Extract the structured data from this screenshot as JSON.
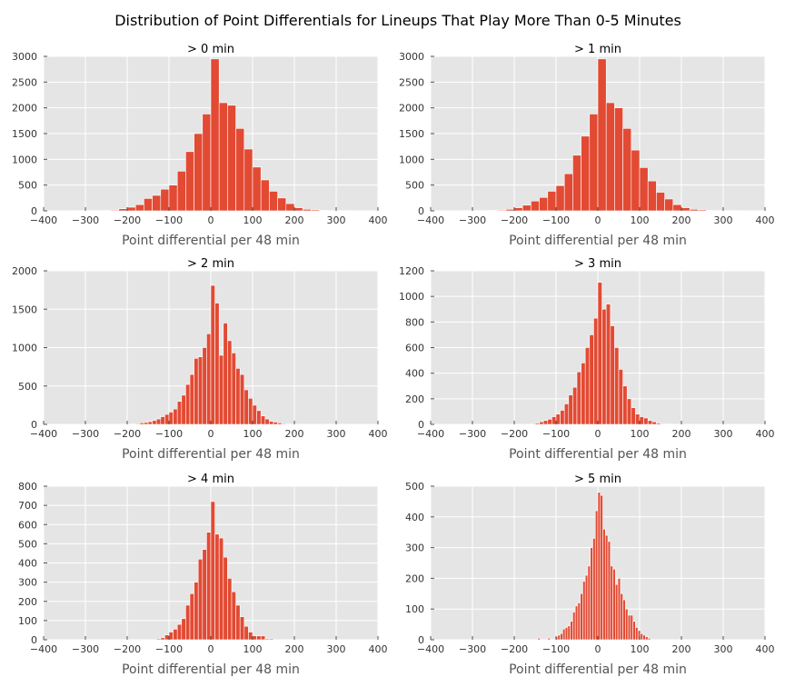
{
  "figure": {
    "title": "Distribution of Point Differentials for Lineups That Play More Than 0-5 Minutes"
  },
  "chart_data": [
    {
      "type": "bar",
      "title": "> 0 min",
      "xlabel": "Point differential per 48 min",
      "ylabel": "",
      "xlim": [
        -400,
        400
      ],
      "ylim": [
        0,
        3000
      ],
      "xticks": [
        -400,
        -300,
        -200,
        -100,
        0,
        100,
        200,
        300,
        400
      ],
      "yticks": [
        0,
        500,
        1000,
        1500,
        2000,
        2500,
        3000
      ],
      "bin_width": 20,
      "bin_starts": [
        -320,
        -300,
        -280,
        -260,
        -240,
        -220,
        -200,
        -180,
        -160,
        -140,
        -120,
        -100,
        -80,
        -60,
        -40,
        -20,
        0,
        20,
        40,
        60,
        80,
        100,
        120,
        140,
        160,
        180,
        200,
        220,
        240,
        260,
        280,
        300,
        320,
        340,
        360
      ],
      "values": [
        5,
        5,
        5,
        10,
        15,
        40,
        70,
        120,
        240,
        300,
        420,
        500,
        770,
        1150,
        1500,
        1880,
        2950,
        2100,
        2050,
        1600,
        1200,
        850,
        600,
        380,
        250,
        140,
        60,
        30,
        20,
        10,
        5,
        5,
        5,
        3,
        3
      ],
      "grid": true
    },
    {
      "type": "bar",
      "title": "> 1 min",
      "xlabel": "Point differential per 48 min",
      "ylabel": "",
      "xlim": [
        -400,
        400
      ],
      "ylim": [
        0,
        3000
      ],
      "xticks": [
        -400,
        -300,
        -200,
        -100,
        0,
        100,
        200,
        300,
        400
      ],
      "yticks": [
        0,
        500,
        1000,
        1500,
        2000,
        2500,
        3000
      ],
      "bin_width": 20,
      "bin_starts": [
        -320,
        -300,
        -280,
        -260,
        -240,
        -220,
        -200,
        -180,
        -160,
        -140,
        -120,
        -100,
        -80,
        -60,
        -40,
        -20,
        0,
        20,
        40,
        60,
        80,
        100,
        120,
        140,
        160,
        180,
        200,
        220,
        240,
        260,
        280,
        300,
        320,
        340,
        360
      ],
      "values": [
        5,
        5,
        5,
        10,
        15,
        30,
        60,
        110,
        190,
        260,
        380,
        490,
        720,
        1080,
        1450,
        1880,
        2950,
        2100,
        2000,
        1600,
        1180,
        840,
        580,
        360,
        230,
        120,
        60,
        30,
        20,
        10,
        5,
        5,
        5,
        3,
        3
      ],
      "grid": true
    },
    {
      "type": "bar",
      "title": "> 2 min",
      "xlabel": "Point differential per 48 min",
      "ylabel": "",
      "xlim": [
        -400,
        400
      ],
      "ylim": [
        0,
        2000
      ],
      "xticks": [
        -400,
        -300,
        -200,
        -100,
        0,
        100,
        200,
        300,
        400
      ],
      "yticks": [
        0,
        500,
        1000,
        1500,
        2000
      ],
      "bin_width": 10,
      "bin_starts": [
        -190,
        -180,
        -170,
        -160,
        -150,
        -140,
        -130,
        -120,
        -110,
        -100,
        -90,
        -80,
        -70,
        -60,
        -50,
        -40,
        -30,
        -20,
        -10,
        0,
        10,
        20,
        30,
        40,
        50,
        60,
        70,
        80,
        90,
        100,
        110,
        120,
        130,
        140,
        150,
        160,
        170,
        180
      ],
      "values": [
        5,
        10,
        20,
        25,
        35,
        50,
        70,
        100,
        130,
        160,
        200,
        300,
        380,
        520,
        650,
        860,
        880,
        1000,
        1180,
        1810,
        1580,
        900,
        1320,
        1090,
        930,
        730,
        650,
        450,
        340,
        250,
        180,
        110,
        70,
        40,
        30,
        20,
        10,
        5
      ],
      "grid": true
    },
    {
      "type": "bar",
      "title": "> 3 min",
      "xlabel": "Point differential per 48 min",
      "ylabel": "",
      "xlim": [
        -400,
        400
      ],
      "ylim": [
        0,
        1200
      ],
      "xticks": [
        -400,
        -300,
        -200,
        -100,
        0,
        100,
        200,
        300,
        400
      ],
      "yticks": [
        0,
        200,
        400,
        600,
        800,
        1000,
        1200
      ],
      "bin_width": 10,
      "bin_starts": [
        -160,
        -150,
        -140,
        -130,
        -120,
        -110,
        -100,
        -90,
        -80,
        -70,
        -60,
        -50,
        -40,
        -30,
        -20,
        -10,
        0,
        10,
        20,
        30,
        40,
        50,
        60,
        70,
        80,
        90,
        100,
        110,
        120,
        130,
        140,
        150,
        160
      ],
      "values": [
        5,
        10,
        20,
        30,
        40,
        60,
        80,
        110,
        160,
        230,
        290,
        410,
        480,
        600,
        700,
        830,
        1110,
        900,
        940,
        770,
        600,
        430,
        300,
        200,
        130,
        80,
        60,
        50,
        30,
        20,
        10,
        5,
        3
      ],
      "grid": true
    },
    {
      "type": "bar",
      "title": "> 4 min",
      "xlabel": "Point differential per 48 min",
      "ylabel": "",
      "xlim": [
        -400,
        400
      ],
      "ylim": [
        0,
        800
      ],
      "xticks": [
        -400,
        -300,
        -200,
        -100,
        0,
        100,
        200,
        300,
        400
      ],
      "yticks": [
        0,
        100,
        200,
        300,
        400,
        500,
        600,
        700,
        800
      ],
      "bin_width": 10,
      "bin_starts": [
        -130,
        -120,
        -110,
        -100,
        -90,
        -80,
        -70,
        -60,
        -50,
        -40,
        -30,
        -20,
        -10,
        0,
        10,
        20,
        30,
        40,
        50,
        60,
        70,
        80,
        90,
        100,
        110,
        120,
        130,
        140
      ],
      "values": [
        5,
        10,
        25,
        40,
        55,
        80,
        110,
        180,
        240,
        300,
        420,
        470,
        560,
        720,
        550,
        530,
        430,
        320,
        250,
        180,
        120,
        70,
        40,
        20,
        20,
        20,
        5,
        5
      ],
      "grid": true
    },
    {
      "type": "bar",
      "title": "> 5 min",
      "xlabel": "Point differential per 48 min",
      "ylabel": "",
      "xlim": [
        -400,
        400
      ],
      "ylim": [
        0,
        500
      ],
      "xticks": [
        -400,
        -300,
        -200,
        -100,
        0,
        100,
        200,
        300,
        400
      ],
      "yticks": [
        0,
        100,
        200,
        300,
        400,
        500
      ],
      "bin_width": 6,
      "bin_starts": [
        -144,
        -120,
        -102,
        -96,
        -90,
        -84,
        -78,
        -72,
        -66,
        -60,
        -54,
        -48,
        -42,
        -36,
        -30,
        -24,
        -18,
        -12,
        -6,
        0,
        6,
        12,
        18,
        24,
        30,
        36,
        42,
        48,
        54,
        60,
        66,
        72,
        78,
        84,
        90,
        96,
        102,
        108,
        114,
        120
      ],
      "values": [
        5,
        5,
        10,
        15,
        20,
        35,
        40,
        45,
        60,
        90,
        110,
        120,
        150,
        190,
        210,
        240,
        300,
        330,
        420,
        480,
        470,
        360,
        340,
        320,
        240,
        230,
        180,
        200,
        150,
        130,
        100,
        80,
        80,
        60,
        40,
        30,
        20,
        15,
        10,
        5
      ],
      "grid": true
    }
  ]
}
